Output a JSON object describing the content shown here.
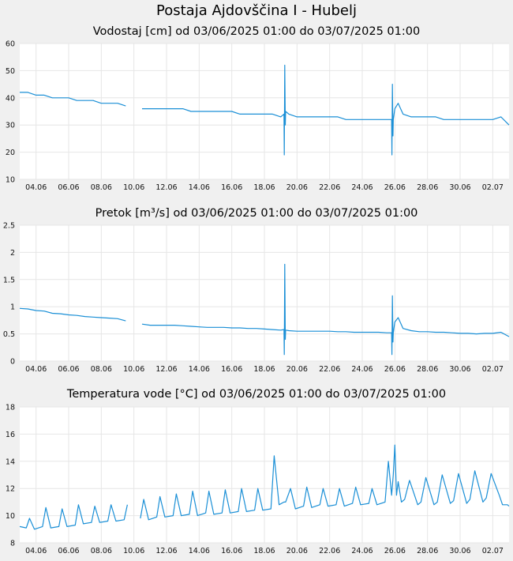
{
  "title": "Postaja Ajdovščina I - Hubelj",
  "colors": {
    "line": "#1a8fd6",
    "grid": "#e6e6e6",
    "plot_bg": "#ffffff",
    "page_bg": "#f0f0f0"
  },
  "chart_data": [
    {
      "type": "line",
      "title": "Vodostaj [cm] od 03/06/2025 01:00 do 03/07/2025 01:00",
      "xlabel": "",
      "ylabel": "",
      "xlim": [
        0,
        30
      ],
      "xticks": [
        1,
        3,
        5,
        7,
        9,
        11,
        13,
        15,
        17,
        19,
        21,
        23,
        25,
        27,
        29
      ],
      "xtick_labels": [
        "04.06",
        "06.06",
        "08.06",
        "10.06",
        "12.06",
        "14.06",
        "16.06",
        "18.06",
        "20.06",
        "22.06",
        "24.06",
        "26.06",
        "28.06",
        "30.06",
        "02.07"
      ],
      "ylim": [
        10,
        60
      ],
      "yticks": [
        10,
        20,
        30,
        40,
        50,
        60
      ],
      "ytick_labels": [
        "10",
        "20",
        "30",
        "40",
        "50",
        "60"
      ],
      "grid": true,
      "series": [
        {
          "x": [
            0,
            0.5,
            1,
            1.5,
            2,
            2.5,
            3,
            3.5,
            4,
            4.5,
            5,
            5.5,
            6,
            6.5,
            7,
            7.5,
            8,
            8.5,
            9,
            9.5,
            10,
            10.5,
            11,
            11.5,
            12,
            12.5,
            13,
            13.5,
            14,
            14.5,
            15,
            15.5,
            16,
            16.2,
            16.22,
            16.25,
            16.28,
            16.3,
            16.5,
            17,
            17.5,
            18,
            18.5,
            19,
            19.5,
            20,
            20.5,
            21,
            21.5,
            22,
            22.5,
            22.8,
            22.82,
            22.85,
            22.88,
            22.9,
            23,
            23.2,
            23.5,
            24,
            24.5,
            25,
            25.5,
            26,
            26.5,
            27,
            27.5,
            28,
            28.5,
            29,
            29.5,
            30
          ],
          "y": [
            42,
            42,
            41,
            41,
            40,
            40,
            40,
            39,
            39,
            39,
            38,
            38,
            38,
            37,
            null,
            36,
            36,
            36,
            36,
            36,
            36,
            35,
            35,
            35,
            35,
            35,
            35,
            34,
            34,
            34,
            34,
            34,
            33,
            34,
            19,
            52,
            30,
            35,
            34,
            33,
            33,
            33,
            33,
            33,
            33,
            32,
            32,
            32,
            32,
            32,
            32,
            32,
            19,
            45,
            26,
            32,
            36,
            38,
            34,
            33,
            33,
            33,
            33,
            32,
            32,
            32,
            32,
            32,
            32,
            32,
            33,
            30
          ]
        }
      ]
    },
    {
      "type": "line",
      "title": "Pretok [m³/s] od 03/06/2025 01:00 do 03/07/2025 01:00",
      "xlabel": "",
      "ylabel": "",
      "xlim": [
        0,
        30
      ],
      "xticks": [
        1,
        3,
        5,
        7,
        9,
        11,
        13,
        15,
        17,
        19,
        21,
        23,
        25,
        27,
        29
      ],
      "xtick_labels": [
        "04.06",
        "06.06",
        "08.06",
        "10.06",
        "12.06",
        "14.06",
        "16.06",
        "18.06",
        "20.06",
        "22.06",
        "24.06",
        "26.06",
        "28.06",
        "30.06",
        "02.07"
      ],
      "ylim": [
        0,
        2.5
      ],
      "yticks": [
        0,
        0.5,
        1,
        1.5,
        2,
        2.5
      ],
      "ytick_labels": [
        "0",
        "0.5",
        "1",
        "1.5",
        "2",
        "2.5"
      ],
      "grid": true,
      "series": [
        {
          "x": [
            0,
            0.5,
            1,
            1.5,
            2,
            2.5,
            3,
            3.5,
            4,
            4.5,
            5,
            5.5,
            6,
            6.5,
            7,
            7.5,
            8,
            8.5,
            9,
            9.5,
            10,
            10.5,
            11,
            11.5,
            12,
            12.5,
            13,
            13.5,
            14,
            14.5,
            15,
            15.5,
            16,
            16.2,
            16.22,
            16.25,
            16.28,
            16.3,
            16.5,
            17,
            17.5,
            18,
            18.5,
            19,
            19.5,
            20,
            20.5,
            21,
            21.5,
            22,
            22.5,
            22.8,
            22.82,
            22.85,
            22.88,
            22.9,
            23,
            23.2,
            23.5,
            24,
            24.5,
            25,
            25.5,
            26,
            26.5,
            27,
            27.5,
            28,
            28.5,
            29,
            29.5,
            30
          ],
          "y": [
            0.97,
            0.96,
            0.93,
            0.92,
            0.88,
            0.87,
            0.85,
            0.84,
            0.82,
            0.81,
            0.8,
            0.79,
            0.78,
            0.74,
            null,
            0.68,
            0.66,
            0.66,
            0.66,
            0.66,
            0.65,
            0.64,
            0.63,
            0.62,
            0.62,
            0.62,
            0.61,
            0.61,
            0.6,
            0.6,
            0.59,
            0.58,
            0.57,
            0.58,
            0.12,
            1.78,
            0.4,
            0.57,
            0.56,
            0.55,
            0.55,
            0.55,
            0.55,
            0.55,
            0.54,
            0.54,
            0.53,
            0.53,
            0.53,
            0.53,
            0.52,
            0.52,
            0.12,
            1.2,
            0.35,
            0.52,
            0.72,
            0.8,
            0.6,
            0.56,
            0.54,
            0.54,
            0.53,
            0.53,
            0.52,
            0.51,
            0.51,
            0.5,
            0.51,
            0.51,
            0.53,
            0.45
          ]
        }
      ]
    },
    {
      "type": "line",
      "title": "Temperatura vode [°C] od 03/06/2025 01:00 do 03/07/2025 01:00",
      "xlabel": "",
      "ylabel": "",
      "xlim": [
        0,
        30
      ],
      "xticks": [
        1,
        3,
        5,
        7,
        9,
        11,
        13,
        15,
        17,
        19,
        21,
        23,
        25,
        27,
        29
      ],
      "xtick_labels": [
        "04.06",
        "06.06",
        "08.06",
        "10.06",
        "12.06",
        "14.06",
        "16.06",
        "18.06",
        "20.06",
        "22.06",
        "24.06",
        "26.06",
        "28.06",
        "30.06",
        "02.07"
      ],
      "ylim": [
        8,
        18
      ],
      "yticks": [
        8,
        10,
        12,
        14,
        16,
        18
      ],
      "ytick_labels": [
        "8",
        "10",
        "12",
        "14",
        "16",
        "18"
      ],
      "grid": true,
      "series": [
        {
          "x": [
            0,
            0.4,
            0.6,
            0.9,
            1.4,
            1.6,
            1.9,
            2.4,
            2.6,
            2.9,
            3.4,
            3.6,
            3.9,
            4.4,
            4.6,
            4.9,
            5.4,
            5.6,
            5.9,
            6.4,
            6.6,
            6.9,
            7.4,
            7.6,
            7.9,
            8.4,
            8.6,
            8.9,
            9.4,
            9.6,
            9.9,
            10.4,
            10.6,
            10.9,
            11.4,
            11.6,
            11.9,
            12.4,
            12.6,
            12.9,
            13.4,
            13.6,
            13.9,
            14.4,
            14.6,
            14.9,
            15.4,
            15.6,
            15.9,
            16.2,
            16.3,
            16.6,
            16.9,
            17.4,
            17.6,
            17.9,
            18.4,
            18.6,
            18.9,
            19.4,
            19.6,
            19.9,
            20.4,
            20.6,
            20.9,
            21.4,
            21.6,
            21.9,
            22.4,
            22.6,
            22.8,
            22.9,
            23.0,
            23.1,
            23.2,
            23.4,
            23.6,
            23.9,
            24.4,
            24.6,
            24.9,
            25.4,
            25.6,
            25.9,
            26.4,
            26.6,
            26.9,
            27.4,
            27.6,
            27.9,
            28.4,
            28.6,
            28.9,
            29.4,
            29.6,
            29.9,
            30
          ],
          "y": [
            9.2,
            9.1,
            9.8,
            9.0,
            9.2,
            10.6,
            9.1,
            9.2,
            10.5,
            9.2,
            9.3,
            10.8,
            9.4,
            9.5,
            10.7,
            9.5,
            9.6,
            10.8,
            9.6,
            9.7,
            10.8,
            null,
            9.8,
            11.2,
            9.7,
            9.9,
            11.4,
            9.9,
            10.0,
            11.6,
            10.0,
            10.1,
            11.8,
            10.0,
            10.2,
            11.8,
            10.1,
            10.2,
            11.9,
            10.2,
            10.3,
            12.0,
            10.3,
            10.4,
            12.0,
            10.4,
            10.5,
            14.4,
            10.8,
            11.0,
            11.0,
            12.0,
            10.5,
            10.7,
            12.1,
            10.6,
            10.8,
            12.0,
            10.7,
            10.8,
            12.0,
            10.7,
            10.9,
            12.1,
            10.8,
            10.9,
            12.0,
            10.8,
            11.0,
            14.0,
            11.5,
            13.0,
            15.2,
            11.5,
            12.5,
            11.0,
            11.2,
            12.6,
            10.8,
            11.0,
            12.8,
            10.8,
            11.0,
            13.0,
            10.9,
            11.1,
            13.1,
            10.9,
            11.2,
            13.3,
            11.0,
            11.3,
            13.1,
            11.5,
            10.8,
            10.8,
            10.7
          ]
        }
      ]
    }
  ]
}
